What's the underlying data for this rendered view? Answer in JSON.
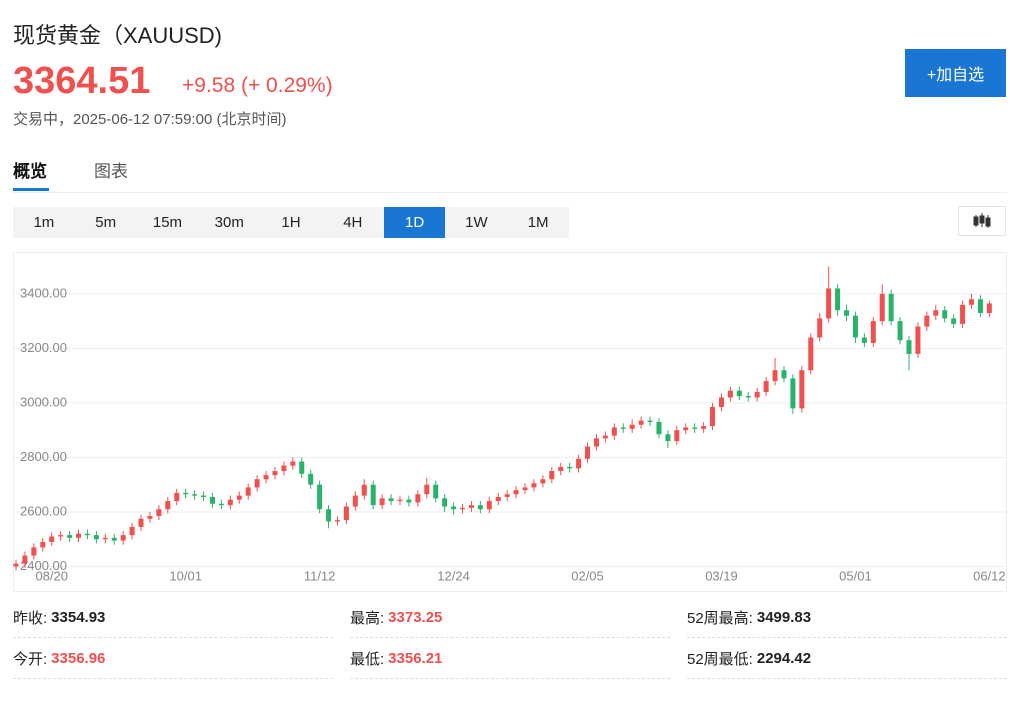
{
  "header": {
    "title": "现货黄金（XAUUSD)",
    "price": 3364.51,
    "change": "+9.58 (+ 0.29%)",
    "status": "交易中，2025-06-12 07:59:00 (北京时间)",
    "button": "+加自选"
  },
  "tabs": [
    "概览",
    "图表"
  ],
  "intervals": [
    "1m",
    "5m",
    "15m",
    "30m",
    "1H",
    "4H",
    "1D",
    "1W",
    "1M"
  ],
  "chart_data": {
    "type": "candlestick",
    "up_color": "#f0504e",
    "down_color": "#27b36a",
    "grid": true,
    "ylim": [
      2310,
      3550
    ],
    "yticks": [
      {
        "value": 2400,
        "label": "2400.00"
      },
      {
        "value": 2600,
        "label": "2600.00"
      },
      {
        "value": 2800,
        "label": "2800.00"
      },
      {
        "value": 3000,
        "label": "3000.00"
      },
      {
        "value": 3200,
        "label": "3200.00"
      },
      {
        "value": 3400,
        "label": "3400.00"
      }
    ],
    "x": [
      null,
      null,
      null,
      null,
      "08/20",
      null,
      null,
      null,
      null,
      null,
      null,
      null,
      null,
      null,
      null,
      null,
      null,
      null,
      null,
      "10/01",
      null,
      null,
      null,
      null,
      null,
      null,
      null,
      null,
      null,
      null,
      null,
      null,
      null,
      null,
      "11/12",
      null,
      null,
      null,
      null,
      null,
      null,
      null,
      null,
      null,
      null,
      null,
      null,
      null,
      null,
      "12/24",
      null,
      null,
      null,
      null,
      null,
      null,
      null,
      null,
      null,
      null,
      null,
      null,
      null,
      null,
      "02/05",
      null,
      null,
      null,
      null,
      null,
      null,
      null,
      null,
      null,
      null,
      null,
      null,
      null,
      null,
      "03/19",
      null,
      null,
      null,
      null,
      null,
      null,
      null,
      null,
      null,
      null,
      null,
      null,
      null,
      null,
      "05/01",
      null,
      null,
      null,
      null,
      null,
      null,
      null,
      null,
      null,
      null,
      null,
      null,
      null,
      null,
      "06/12"
    ],
    "open": [
      2400,
      2410,
      2440,
      2470,
      2490,
      2510,
      2515,
      2505,
      2520,
      2515,
      2500,
      2505,
      2495,
      2515,
      2545,
      2575,
      2585,
      2610,
      2640,
      2670,
      2665,
      2660,
      2655,
      2630,
      2625,
      2645,
      2660,
      2690,
      2720,
      2735,
      2750,
      2770,
      2785,
      2740,
      2700,
      2610,
      2565,
      2570,
      2620,
      2660,
      2700,
      2625,
      2650,
      2640,
      2645,
      2635,
      2665,
      2700,
      2650,
      2620,
      2610,
      2615,
      2625,
      2610,
      2640,
      2655,
      2665,
      2680,
      2690,
      2705,
      2720,
      2750,
      2765,
      2760,
      2795,
      2840,
      2870,
      2880,
      2910,
      2905,
      2920,
      2935,
      2930,
      2885,
      2860,
      2900,
      2910,
      2905,
      2915,
      2985,
      3020,
      3045,
      3025,
      3020,
      3040,
      3080,
      3120,
      3090,
      2980,
      3120,
      3240,
      3310,
      3420,
      3340,
      3320,
      3240,
      3220,
      3300,
      3400,
      3300,
      3230,
      3180,
      3280,
      3320,
      3340,
      3310,
      3290,
      3360,
      3380,
      3330
    ],
    "high": [
      2425,
      2455,
      2485,
      2505,
      2525,
      2530,
      2530,
      2535,
      2535,
      2530,
      2520,
      2520,
      2530,
      2560,
      2590,
      2600,
      2625,
      2655,
      2685,
      2685,
      2680,
      2675,
      2670,
      2645,
      2660,
      2675,
      2705,
      2735,
      2750,
      2765,
      2785,
      2800,
      2800,
      2755,
      2715,
      2625,
      2585,
      2635,
      2675,
      2720,
      2715,
      2665,
      2665,
      2660,
      2660,
      2680,
      2725,
      2715,
      2665,
      2635,
      2630,
      2640,
      2640,
      2655,
      2670,
      2680,
      2695,
      2705,
      2720,
      2735,
      2765,
      2780,
      2780,
      2810,
      2855,
      2885,
      2895,
      2925,
      2925,
      2940,
      2950,
      2950,
      2945,
      2900,
      2915,
      2925,
      2925,
      2930,
      3000,
      3035,
      3060,
      3060,
      3040,
      3055,
      3095,
      3165,
      3135,
      3105,
      3135,
      3255,
      3330,
      3500,
      3435,
      3360,
      3335,
      3255,
      3315,
      3435,
      3415,
      3315,
      3245,
      3295,
      3335,
      3360,
      3355,
      3325,
      3375,
      3400,
      3395,
      3375
    ],
    "low": [
      2385,
      2395,
      2425,
      2455,
      2475,
      2495,
      2490,
      2490,
      2500,
      2485,
      2485,
      2480,
      2480,
      2500,
      2530,
      2560,
      2570,
      2595,
      2625,
      2650,
      2645,
      2640,
      2615,
      2610,
      2610,
      2630,
      2645,
      2675,
      2705,
      2720,
      2735,
      2755,
      2725,
      2685,
      2595,
      2540,
      2550,
      2555,
      2605,
      2645,
      2610,
      2610,
      2625,
      2625,
      2620,
      2620,
      2650,
      2635,
      2600,
      2590,
      2595,
      2600,
      2595,
      2595,
      2625,
      2640,
      2650,
      2665,
      2675,
      2690,
      2705,
      2735,
      2745,
      2745,
      2780,
      2825,
      2855,
      2865,
      2890,
      2890,
      2905,
      2915,
      2870,
      2835,
      2845,
      2885,
      2890,
      2890,
      2900,
      2970,
      3005,
      3010,
      3005,
      3005,
      3025,
      3065,
      3075,
      2960,
      2965,
      3105,
      3225,
      3295,
      3320,
      3300,
      3220,
      3205,
      3205,
      3285,
      3285,
      3215,
      3120,
      3165,
      3265,
      3305,
      3295,
      3275,
      3275,
      3345,
      3315,
      3315
    ],
    "close": [
      2410,
      2440,
      2470,
      2490,
      2510,
      2515,
      2505,
      2520,
      2515,
      2500,
      2505,
      2495,
      2515,
      2545,
      2575,
      2585,
      2610,
      2640,
      2670,
      2665,
      2660,
      2655,
      2630,
      2625,
      2645,
      2660,
      2690,
      2720,
      2735,
      2750,
      2770,
      2785,
      2740,
      2700,
      2610,
      2565,
      2570,
      2620,
      2660,
      2700,
      2625,
      2650,
      2640,
      2645,
      2635,
      2665,
      2700,
      2650,
      2620,
      2610,
      2615,
      2625,
      2610,
      2640,
      2655,
      2665,
      2680,
      2690,
      2705,
      2720,
      2750,
      2765,
      2760,
      2795,
      2840,
      2870,
      2880,
      2910,
      2905,
      2920,
      2935,
      2930,
      2885,
      2860,
      2900,
      2910,
      2905,
      2915,
      2985,
      3020,
      3045,
      3025,
      3020,
      3040,
      3080,
      3120,
      3090,
      2980,
      3120,
      3240,
      3310,
      3420,
      3340,
      3320,
      3240,
      3220,
      3300,
      3400,
      3300,
      3230,
      3180,
      3280,
      3320,
      3340,
      3310,
      3290,
      3360,
      3380,
      3330,
      3365
    ]
  },
  "stats": [
    [
      {
        "label": "昨收:",
        "value": 3354.93
      },
      {
        "label": "最高:",
        "value": 3373.25
      },
      {
        "label": "52周最高:",
        "value": 3499.83
      }
    ],
    [
      {
        "label": "今开:",
        "value": 3356.96
      },
      {
        "label": "最低:",
        "value": 3356.21
      },
      {
        "label": "52周最低:",
        "value": 2294.42
      }
    ]
  ]
}
